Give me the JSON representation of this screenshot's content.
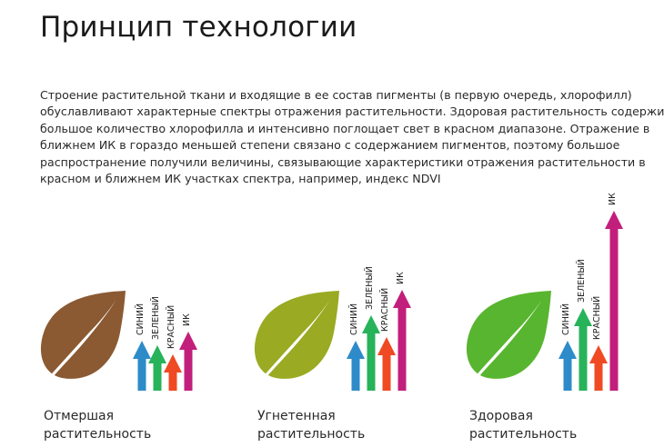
{
  "title": "Принцип технологии",
  "paragraph_lines": [
    "Строение растительной ткани и входящие в ее состав пигменты (в первую очередь, хлорофилл)",
    "обуславливают характерные спектры отражения растительности. Здоровая растительность содержит",
    "большое количество хлорофилла и интенсивно поглощает свет в красном диапазоне. Отражение в",
    "ближнем ИК в гораздо меньшей степени связано с содержанием пигментов, поэтому большое",
    "распространение получили величины, связывающие характеристики отражения растительности в",
    "красном и ближнем ИК участках спектра, например, индекс NDVI"
  ],
  "colors": {
    "blue": "#2e8bc9",
    "green": "#27b35a",
    "red": "#ef4a23",
    "ir": "#c21f7c",
    "leaf_dead": "#8b5a32",
    "leaf_stressed": "#9aaa22",
    "leaf_healthy": "#58b52f"
  },
  "bands": [
    "СИНИЙ",
    "ЗЕЛЕНЫЙ",
    "КРАСНЫЙ",
    "ИК"
  ],
  "groups": [
    {
      "label_lines": [
        "Отмершая",
        "растительность"
      ],
      "leaf_color": "leaf_dead",
      "reflectance": [
        0.28,
        0.25,
        0.2,
        0.33
      ]
    },
    {
      "label_lines": [
        "Угнетенная",
        "растительность"
      ],
      "leaf_color": "leaf_stressed",
      "reflectance": [
        0.28,
        0.42,
        0.3,
        0.56
      ]
    },
    {
      "label_lines": [
        "Здоровая",
        "растительность"
      ],
      "leaf_color": "leaf_healthy",
      "reflectance": [
        0.28,
        0.46,
        0.25,
        1.0
      ]
    }
  ]
}
